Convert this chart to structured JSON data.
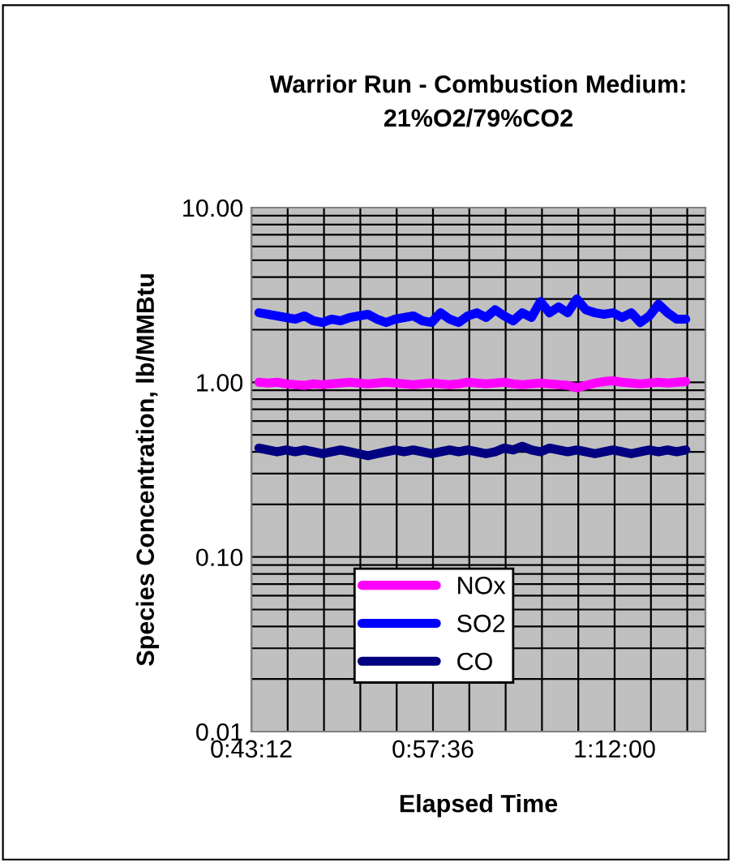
{
  "chart_data": {
    "type": "line",
    "title": "Warrior Run - Combustion Medium:\n21%O2/79%CO2",
    "xlabel": "Elapsed Time",
    "ylabel": "Species Concentration, lb/MMBtu",
    "log": "y",
    "grid": true,
    "legend": "bottom left",
    "marker": "none",
    "line_style": "solid",
    "x": [
      0.73,
      0.742,
      0.754,
      0.766,
      0.778,
      0.79,
      0.802,
      0.814,
      0.826,
      0.838,
      0.85,
      0.862,
      0.874,
      0.886,
      0.898,
      0.91,
      0.922,
      0.934,
      0.946,
      0.958,
      0.97,
      0.982,
      0.994,
      1.006,
      1.018,
      1.03,
      1.042,
      1.054,
      1.066,
      1.078,
      1.09,
      1.102,
      1.114,
      1.126,
      1.138,
      1.15,
      1.162,
      1.174,
      1.186,
      1.198,
      1.21,
      1.222,
      1.234,
      1.246,
      1.258,
      1.27,
      1.282,
      1.294
    ],
    "xlim": [
      0.72,
      1.32
    ],
    "xticks": [
      {
        "value": 0.72,
        "label": "0:43:12"
      },
      {
        "value": 0.768,
        "label": null
      },
      {
        "value": 0.816,
        "label": null
      },
      {
        "value": 0.864,
        "label": null
      },
      {
        "value": 0.912,
        "label": null
      },
      {
        "value": 0.96,
        "label": "0:57:36"
      },
      {
        "value": 1.008,
        "label": null
      },
      {
        "value": 1.056,
        "label": null
      },
      {
        "value": 1.104,
        "label": null
      },
      {
        "value": 1.152,
        "label": null
      },
      {
        "value": 1.2,
        "label": "1:12:00"
      },
      {
        "value": 1.248,
        "label": null
      },
      {
        "value": 1.296,
        "label": null
      }
    ],
    "ylim": [
      0.01,
      10
    ],
    "yticks": [
      {
        "value": 0.01,
        "label": "0.01"
      },
      {
        "value": 0.02,
        "label": null
      },
      {
        "value": 0.03,
        "label": null
      },
      {
        "value": 0.04,
        "label": null
      },
      {
        "value": 0.05,
        "label": null
      },
      {
        "value": 0.06,
        "label": null
      },
      {
        "value": 0.07,
        "label": null
      },
      {
        "value": 0.08,
        "label": null
      },
      {
        "value": 0.09,
        "label": null
      },
      {
        "value": 0.1,
        "label": "0.10"
      },
      {
        "value": 0.2,
        "label": null
      },
      {
        "value": 0.3,
        "label": null
      },
      {
        "value": 0.4,
        "label": null
      },
      {
        "value": 0.5,
        "label": null
      },
      {
        "value": 0.6,
        "label": null
      },
      {
        "value": 0.7,
        "label": null
      },
      {
        "value": 0.8,
        "label": null
      },
      {
        "value": 0.9,
        "label": null
      },
      {
        "value": 1,
        "label": "1.00"
      },
      {
        "value": 2,
        "label": null
      },
      {
        "value": 3,
        "label": null
      },
      {
        "value": 4,
        "label": null
      },
      {
        "value": 5,
        "label": null
      },
      {
        "value": 6,
        "label": null
      },
      {
        "value": 7,
        "label": null
      },
      {
        "value": 8,
        "label": null
      },
      {
        "value": 9,
        "label": null
      },
      {
        "value": 10,
        "label": "10.00"
      }
    ],
    "series": [
      {
        "name": "NOx",
        "color": "#ff00ff",
        "values": [
          1.0,
          0.99,
          1.0,
          0.98,
          0.97,
          0.96,
          0.98,
          0.97,
          0.98,
          0.99,
          1.0,
          0.99,
          0.98,
          0.99,
          1.0,
          0.99,
          0.98,
          0.97,
          0.98,
          0.99,
          0.98,
          0.97,
          0.98,
          1.0,
          0.99,
          0.98,
          0.99,
          1.0,
          0.98,
          0.97,
          0.98,
          0.99,
          0.98,
          0.97,
          0.96,
          0.93,
          0.96,
          0.99,
          1.01,
          1.02,
          1.0,
          0.99,
          0.98,
          0.99,
          1.0,
          0.99,
          1.0,
          1.01
        ]
      },
      {
        "name": "SO2",
        "color": "#0000ff",
        "values": [
          2.5,
          2.45,
          2.4,
          2.35,
          2.3,
          2.4,
          2.25,
          2.2,
          2.3,
          2.25,
          2.35,
          2.4,
          2.45,
          2.3,
          2.2,
          2.3,
          2.35,
          2.4,
          2.25,
          2.2,
          2.5,
          2.3,
          2.2,
          2.4,
          2.5,
          2.35,
          2.6,
          2.4,
          2.25,
          2.5,
          2.35,
          2.9,
          2.5,
          2.7,
          2.5,
          3.0,
          2.6,
          2.5,
          2.45,
          2.5,
          2.35,
          2.5,
          2.2,
          2.4,
          2.8,
          2.5,
          2.3,
          2.3
        ]
      },
      {
        "name": "CO",
        "color": "#000080",
        "values": [
          0.42,
          0.41,
          0.4,
          0.41,
          0.4,
          0.41,
          0.4,
          0.39,
          0.4,
          0.41,
          0.4,
          0.39,
          0.38,
          0.39,
          0.4,
          0.41,
          0.4,
          0.41,
          0.4,
          0.39,
          0.4,
          0.41,
          0.4,
          0.41,
          0.4,
          0.39,
          0.4,
          0.42,
          0.41,
          0.43,
          0.41,
          0.4,
          0.42,
          0.41,
          0.4,
          0.41,
          0.4,
          0.39,
          0.4,
          0.41,
          0.4,
          0.39,
          0.4,
          0.41,
          0.4,
          0.41,
          0.4,
          0.41
        ]
      }
    ]
  }
}
